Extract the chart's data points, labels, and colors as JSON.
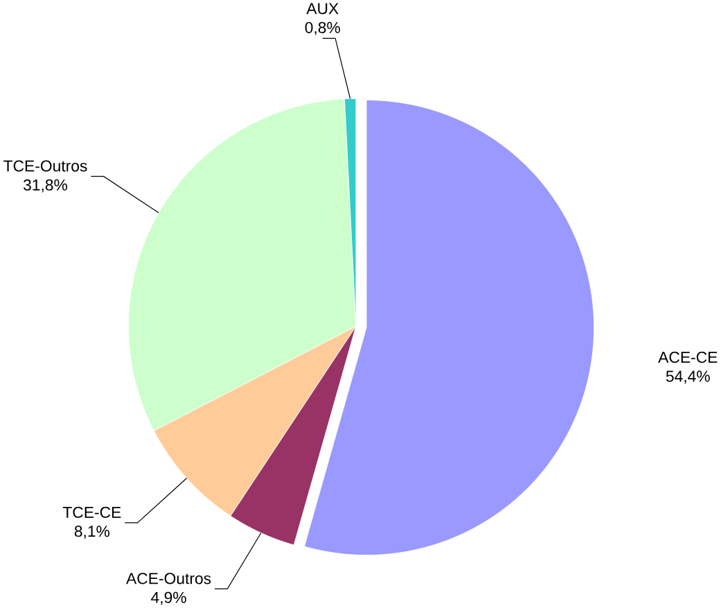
{
  "chart_data": {
    "type": "pie",
    "categories": [
      "ACE-CE",
      "ACE-Outros",
      "TCE-CE",
      "TCE-Outros",
      "AUX"
    ],
    "values": [
      54.4,
      4.9,
      8.1,
      31.8,
      0.8
    ],
    "value_labels": [
      "54,4%",
      "4,9%",
      "8,1%",
      "31,8%",
      "0,8%"
    ],
    "colors": [
      "#9999ff",
      "#993366",
      "#ffcc99",
      "#ccffcc",
      "#33cccc"
    ]
  }
}
